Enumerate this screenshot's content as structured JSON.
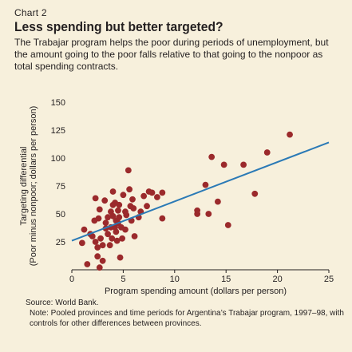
{
  "header": {
    "chart_number": "Chart 2",
    "title": "Less spending but better targeted?",
    "subtitle": "The Trabajar program helps the poor during periods of unemployment, but the amount going to the poor falls relative to that going to the nonpoor as total spending contracts."
  },
  "colors": {
    "background": "#f7f0dc",
    "points": "#9b2a2c",
    "trend_line": "#2b7ab6",
    "axis": "#231f20"
  },
  "chart_data": {
    "type": "scatter",
    "xlabel": "Program spending amount (dollars per person)",
    "ylabel_line1": "Targeting differential",
    "ylabel_line2": "(Poor minus nonpoor; dollars per person)",
    "xlim": [
      0,
      25
    ],
    "ylim": [
      0,
      150
    ],
    "xticks": [
      0,
      5,
      10,
      15,
      20,
      25
    ],
    "yticks": [
      25,
      50,
      75,
      100,
      125,
      150
    ],
    "grid": false,
    "trend_line": {
      "x": [
        0,
        25
      ],
      "y": [
        26,
        114
      ]
    },
    "points": [
      {
        "x": 1.0,
        "y": 24
      },
      {
        "x": 1.2,
        "y": 36
      },
      {
        "x": 1.5,
        "y": 5
      },
      {
        "x": 1.8,
        "y": 32
      },
      {
        "x": 2.0,
        "y": 30
      },
      {
        "x": 2.2,
        "y": 44
      },
      {
        "x": 2.3,
        "y": 64
      },
      {
        "x": 2.3,
        "y": 25
      },
      {
        "x": 2.5,
        "y": 12
      },
      {
        "x": 2.5,
        "y": 20
      },
      {
        "x": 2.6,
        "y": 46
      },
      {
        "x": 2.7,
        "y": 54
      },
      {
        "x": 2.7,
        "y": 2
      },
      {
        "x": 2.8,
        "y": 28
      },
      {
        "x": 3.0,
        "y": 8
      },
      {
        "x": 3.0,
        "y": 22
      },
      {
        "x": 3.2,
        "y": 62
      },
      {
        "x": 3.3,
        "y": 37
      },
      {
        "x": 3.3,
        "y": 42
      },
      {
        "x": 3.5,
        "y": 47
      },
      {
        "x": 3.5,
        "y": 32
      },
      {
        "x": 3.7,
        "y": 22
      },
      {
        "x": 3.8,
        "y": 38
      },
      {
        "x": 3.8,
        "y": 52
      },
      {
        "x": 3.9,
        "y": 28
      },
      {
        "x": 4.0,
        "y": 70
      },
      {
        "x": 4.0,
        "y": 48
      },
      {
        "x": 4.0,
        "y": 58
      },
      {
        "x": 4.2,
        "y": 60
      },
      {
        "x": 4.2,
        "y": 38
      },
      {
        "x": 4.3,
        "y": 44
      },
      {
        "x": 4.3,
        "y": 34
      },
      {
        "x": 4.4,
        "y": 26
      },
      {
        "x": 4.5,
        "y": 53
      },
      {
        "x": 4.5,
        "y": 42
      },
      {
        "x": 4.6,
        "y": 58
      },
      {
        "x": 4.6,
        "y": 47
      },
      {
        "x": 4.7,
        "y": 11
      },
      {
        "x": 4.8,
        "y": 38
      },
      {
        "x": 4.9,
        "y": 28
      },
      {
        "x": 5.0,
        "y": 67
      },
      {
        "x": 5.2,
        "y": 52
      },
      {
        "x": 5.2,
        "y": 36
      },
      {
        "x": 5.3,
        "y": 49
      },
      {
        "x": 5.5,
        "y": 89
      },
      {
        "x": 5.6,
        "y": 72
      },
      {
        "x": 5.7,
        "y": 57
      },
      {
        "x": 5.8,
        "y": 44
      },
      {
        "x": 5.9,
        "y": 63
      },
      {
        "x": 6.0,
        "y": 55
      },
      {
        "x": 6.1,
        "y": 30
      },
      {
        "x": 6.5,
        "y": 47
      },
      {
        "x": 6.7,
        "y": 52
      },
      {
        "x": 7.0,
        "y": 66
      },
      {
        "x": 7.3,
        "y": 57
      },
      {
        "x": 7.5,
        "y": 70
      },
      {
        "x": 7.8,
        "y": 69
      },
      {
        "x": 8.3,
        "y": 65
      },
      {
        "x": 8.8,
        "y": 69
      },
      {
        "x": 8.8,
        "y": 46
      },
      {
        "x": 12.2,
        "y": 50
      },
      {
        "x": 12.2,
        "y": 53
      },
      {
        "x": 13.0,
        "y": 76
      },
      {
        "x": 13.3,
        "y": 50
      },
      {
        "x": 13.6,
        "y": 101
      },
      {
        "x": 14.2,
        "y": 61
      },
      {
        "x": 14.8,
        "y": 94
      },
      {
        "x": 15.2,
        "y": 40
      },
      {
        "x": 16.7,
        "y": 94
      },
      {
        "x": 17.8,
        "y": 68
      },
      {
        "x": 19.0,
        "y": 105
      },
      {
        "x": 21.2,
        "y": 121
      }
    ]
  },
  "footer": {
    "source": "Source: World Bank.",
    "note": "Note: Pooled provinces and time periods for Argentina’s Trabajar program, 1997–98, with controls for other differences between provinces."
  }
}
